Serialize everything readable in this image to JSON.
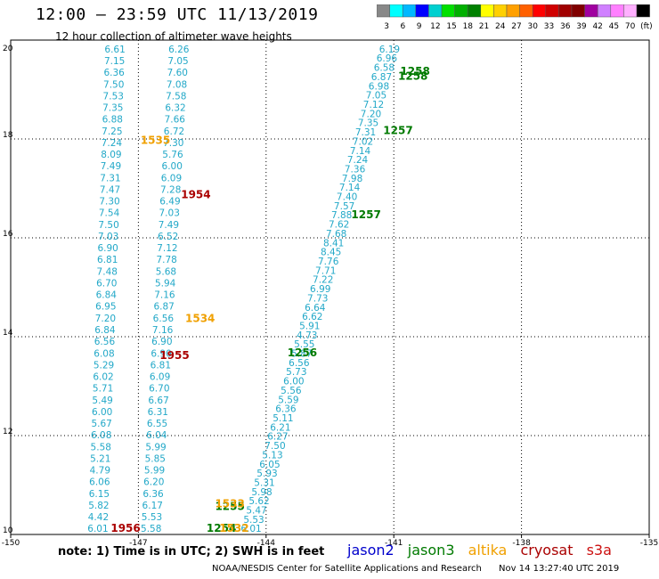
{
  "header": {
    "title": "12:00 — 23:59 UTC 11/13/2019",
    "subtitle": "12 hour collection of altimeter wave heights"
  },
  "color_scale": {
    "colors": [
      "#888888",
      "#00ffff",
      "#00b8ff",
      "#0000ff",
      "#00d0d0",
      "#00e000",
      "#00b000",
      "#008000",
      "#ffff00",
      "#ffd000",
      "#ffa000",
      "#ff6000",
      "#ff0000",
      "#d00000",
      "#a00000",
      "#800000",
      "#a000a0",
      "#d080ff",
      "#ff80ff",
      "#ffb0ff",
      "#000000"
    ],
    "labels": [
      "3",
      "6",
      "9",
      "12",
      "15",
      "18",
      "21",
      "24",
      "27",
      "30",
      "33",
      "36",
      "39",
      "42",
      "45",
      "70",
      "(ft)"
    ]
  },
  "chart_data": {
    "type": "scatter",
    "title": "12:00 — 23:59 UTC 11/13/2019",
    "subtitle": "12 hour collection of altimeter wave heights",
    "xlim": [
      -150,
      -135
    ],
    "ylim": [
      10,
      20
    ],
    "x_ticks": [
      "-150",
      "-147",
      "-144",
      "-141",
      "-138",
      "-135"
    ],
    "y_ticks": [
      "10",
      "12",
      "14",
      "16",
      "18",
      "20"
    ],
    "swh_color": "#22a8c8",
    "tracks": [
      {
        "id": "track-left-a",
        "start": [
          -147.55,
          19.75
        ],
        "end": [
          -147.95,
          10.05
        ],
        "values": [
          "6.61",
          "7.15",
          "6.36",
          "7.50",
          "7.53",
          "7.35",
          "6.88",
          "7.25",
          "7.24",
          "8.09",
          "7.49",
          "7.31",
          "7.47",
          "7.30",
          "7.54",
          "7.50",
          "7.03",
          "6.90",
          "6.81",
          "7.48",
          "6.70",
          "6.84",
          "6.95",
          "7.20",
          "6.84",
          "6.56",
          "6.08",
          "5.29",
          "6.02",
          "5.71",
          "5.49",
          "6.00",
          "5.67",
          "6.08",
          "5.58",
          "5.21",
          "4.79",
          "6.06",
          "6.15",
          "5.82",
          "4.42",
          "6.01"
        ]
      },
      {
        "id": "track-left-b",
        "start": [
          -146.05,
          19.75
        ],
        "end": [
          -146.7,
          10.05
        ],
        "values": [
          "6.26",
          "7.05",
          "7.60",
          "7.08",
          "7.58",
          "6.32",
          "7.66",
          "6.72",
          "7.30",
          "5.76",
          "6.00",
          "6.09",
          "7.28",
          "6.49",
          "7.03",
          "7.49",
          "6.52",
          "7.12",
          "7.78",
          "5.68",
          "5.94",
          "7.16",
          "6.87",
          "6.56",
          "7.16",
          "6.90",
          "6.90",
          "6.81",
          "6.09",
          "6.70",
          "6.67",
          "6.31",
          "6.55",
          "6.04",
          "5.99",
          "5.85",
          "5.99",
          "6.20",
          "6.36",
          "6.17",
          "5.53",
          "5.58"
        ]
      },
      {
        "id": "track-right",
        "start": [
          -141.1,
          19.75
        ],
        "end": [
          -144.35,
          10.05
        ],
        "values": [
          "6.19",
          "6.96",
          "6.58",
          "6.87",
          "6.98",
          "7.05",
          "7.12",
          "7.20",
          "7.35",
          "7.31",
          "7.02",
          "7.14",
          "7.24",
          "7.36",
          "7.98",
          "7.14",
          "7.40",
          "7.57",
          "7.88",
          "7.62",
          "7.68",
          "8.41",
          "8.45",
          "7.76",
          "7.71",
          "7.22",
          "6.99",
          "7.73",
          "6.64",
          "6.62",
          "5.91",
          "4.73",
          "5.55",
          "5.87",
          "6.56",
          "5.73",
          "6.00",
          "5.56",
          "5.59",
          "6.36",
          "5.11",
          "6.21",
          "6.27",
          "7.50",
          "5.13",
          "6.05",
          "5.93",
          "5.31",
          "5.98",
          "5.62",
          "5.47",
          "5.53",
          "6.01"
        ]
      }
    ],
    "pass_labels": [
      {
        "text": "1258",
        "satellite": "jason3",
        "x": -140.5,
        "y": 19.3
      },
      {
        "text": "1258",
        "satellite": "jason3",
        "x": -140.55,
        "y": 19.2
      },
      {
        "text": "1257",
        "satellite": "jason3",
        "x": -140.9,
        "y": 18.1
      },
      {
        "text": "1257",
        "satellite": "jason3",
        "x": -141.65,
        "y": 16.4
      },
      {
        "text": "1256",
        "satellite": "jason3",
        "x": -143.15,
        "y": 13.6
      },
      {
        "text": "1255",
        "satellite": "jason3",
        "x": -144.85,
        "y": 10.5
      },
      {
        "text": "1254",
        "satellite": "jason3",
        "x": -145.05,
        "y": 10.05
      },
      {
        "text": "1535",
        "satellite": "altika",
        "x": -146.6,
        "y": 17.9
      },
      {
        "text": "1534",
        "satellite": "altika",
        "x": -145.55,
        "y": 14.3
      },
      {
        "text": "1533",
        "satellite": "altika",
        "x": -144.85,
        "y": 10.55
      },
      {
        "text": "1532",
        "satellite": "altika",
        "x": -144.75,
        "y": 10.05
      },
      {
        "text": "1954",
        "satellite": "cryosat",
        "x": -145.65,
        "y": 16.8
      },
      {
        "text": "1955",
        "satellite": "cryosat",
        "x": -146.15,
        "y": 13.55
      },
      {
        "text": "1956",
        "satellite": "cryosat",
        "x": -147.3,
        "y": 10.05
      }
    ]
  },
  "legend": {
    "note": "note: 1) Time is in UTC; 2) SWH is in feet",
    "satellites": [
      {
        "key": "jason2",
        "label": "jason2",
        "color": "#0000cc"
      },
      {
        "key": "jason3",
        "label": "jason3",
        "color": "#007a00"
      },
      {
        "key": "altika",
        "label": "altika",
        "color": "#f0a000"
      },
      {
        "key": "cryosat",
        "label": "cryosat",
        "color": "#aa0000"
      },
      {
        "key": "s3a",
        "label": "s3a",
        "color": "#cc1010"
      }
    ]
  },
  "footer": {
    "credit": "NOAA/NESDIS Center for Satellite Applications and Research",
    "timestamp": "Nov 14 13:27:40 UTC 2019"
  }
}
